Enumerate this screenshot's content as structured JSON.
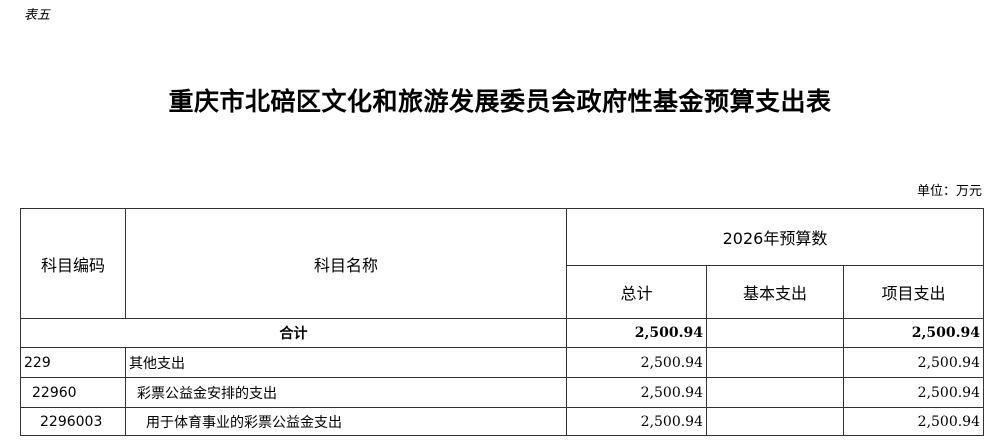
{
  "doc": {
    "tag": "表五",
    "title": "重庆市北碚区文化和旅游发展委员会政府性基金预算支出表",
    "unit": "单位：万元"
  },
  "table": {
    "headers": {
      "code": "科目编码",
      "name": "科目名称",
      "budget": "2026年预算数",
      "total": "总计",
      "basic": "基本支出",
      "project": "项目支出"
    },
    "total_row": {
      "label": "合计",
      "total": "2,500.94",
      "basic": "",
      "project": "2,500.94"
    },
    "rows": [
      {
        "code": "229",
        "name": "其他支出",
        "total": "2,500.94",
        "basic": "",
        "project": "2,500.94"
      },
      {
        "code": "22960",
        "name": "彩票公益金安排的支出",
        "total": "2,500.94",
        "basic": "",
        "project": "2,500.94"
      },
      {
        "code": "2296003",
        "name": "用于体育事业的彩票公益金支出",
        "total": "2,500.94",
        "basic": "",
        "project": "2,500.94"
      }
    ]
  }
}
